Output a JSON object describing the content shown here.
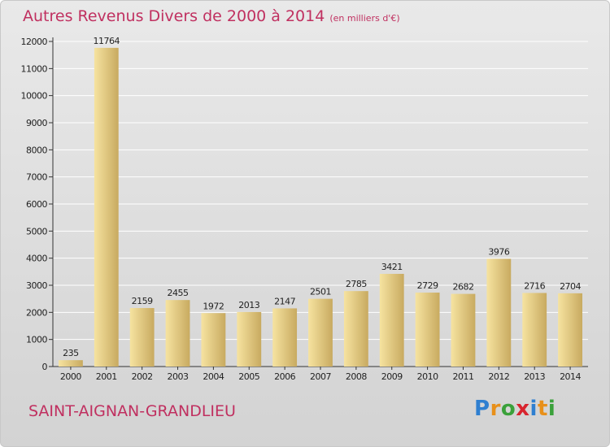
{
  "header": {
    "title": "Autres Revenus Divers de 2000 à 2014",
    "subtitle": "(en milliers d'€)"
  },
  "footer": {
    "place": "SAINT-AIGNAN-GRANDLIEU",
    "logo_letters": [
      "P",
      "r",
      "o",
      "x",
      "i",
      "t",
      "i"
    ],
    "logo_colors": [
      "#2f7fd0",
      "#e8901a",
      "#3aa13a",
      "#d8242e",
      "#2f7fd0",
      "#e8901a",
      "#3aa13a"
    ]
  },
  "colors": {
    "title": "#c03060",
    "bar_light": "#f6e3a0",
    "bar_dark": "#c8aa60",
    "axis": "#333333",
    "grid": "#ffffff"
  },
  "chart_data": {
    "type": "bar",
    "categories": [
      "2000",
      "2001",
      "2002",
      "2003",
      "2004",
      "2005",
      "2006",
      "2007",
      "2008",
      "2009",
      "2010",
      "2011",
      "2012",
      "2013",
      "2014"
    ],
    "values": [
      235,
      11764,
      2159,
      2455,
      1972,
      2013,
      2147,
      2501,
      2785,
      3421,
      2729,
      2682,
      3976,
      2716,
      2704
    ],
    "yticks": [
      0,
      1000,
      2000,
      3000,
      4000,
      5000,
      6000,
      7000,
      8000,
      9000,
      10000,
      11000,
      12000
    ],
    "ylim": [
      0,
      12000
    ],
    "grid": true
  }
}
